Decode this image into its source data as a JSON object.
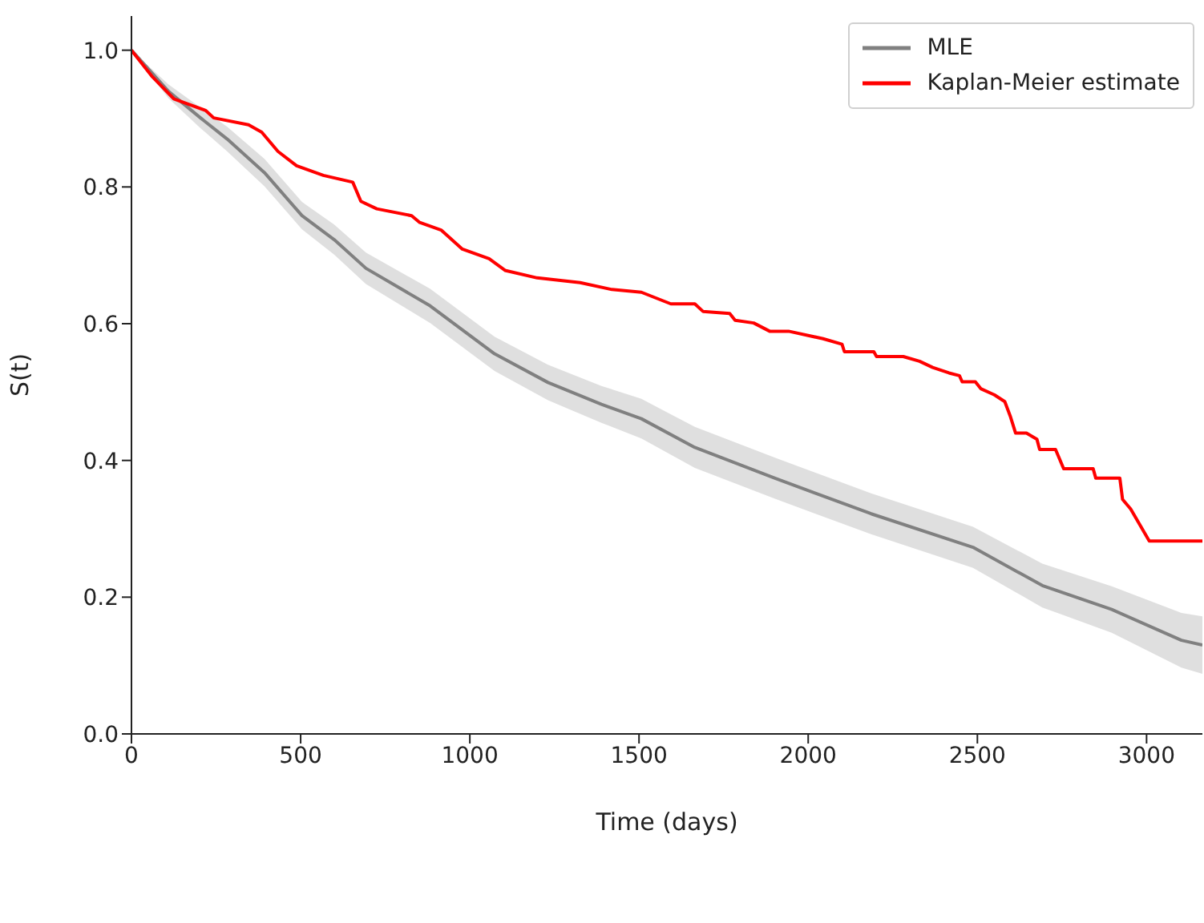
{
  "chart_data": {
    "type": "line",
    "xlabel": "Time (days)",
    "ylabel": "S(t)",
    "xlim": [
      0,
      3165
    ],
    "ylim": [
      0,
      1.05
    ],
    "xticks": [
      0,
      500,
      1000,
      1500,
      2000,
      2500,
      3000
    ],
    "yticks": [
      {
        "value": 0,
        "label": "0.0"
      },
      0.2,
      0.4,
      0.6,
      0.8,
      {
        "value": 1,
        "label": "1.0"
      }
    ],
    "grid": false,
    "legend": "top right",
    "marker": "none",
    "line_style": "solid",
    "series": [
      {
        "name": "MLE",
        "color": "#808080",
        "x": [
          0,
          109,
          204,
          283,
          393,
          504,
          599,
          693,
          883,
          1073,
          1231,
          1389,
          1507,
          1665,
          1902,
          2186,
          2487,
          2692,
          2897,
          3103,
          3165
        ],
        "values": [
          1.0,
          0.94,
          0.901,
          0.87,
          0.821,
          0.758,
          0.723,
          0.681,
          0.626,
          0.556,
          0.514,
          0.482,
          0.461,
          0.419,
          0.374,
          0.322,
          0.273,
          0.217,
          0.182,
          0.137,
          0.13
        ],
        "lower": [
          1.0,
          0.93,
          0.886,
          0.852,
          0.801,
          0.738,
          0.701,
          0.658,
          0.601,
          0.531,
          0.488,
          0.455,
          0.432,
          0.389,
          0.344,
          0.292,
          0.243,
          0.185,
          0.148,
          0.097,
          0.088
        ],
        "upper": [
          1.0,
          0.95,
          0.916,
          0.888,
          0.841,
          0.778,
          0.745,
          0.704,
          0.651,
          0.581,
          0.54,
          0.509,
          0.49,
          0.449,
          0.404,
          0.352,
          0.303,
          0.249,
          0.216,
          0.177,
          0.172
        ]
      },
      {
        "name": "Kaplan-Meier estimate",
        "color": "#ff0000",
        "x": [
          0,
          62,
          125,
          219,
          243,
          346,
          385,
          433,
          488,
          567,
          654,
          678,
          725,
          828,
          852,
          915,
          978,
          1057,
          1104,
          1199,
          1326,
          1420,
          1507,
          1594,
          1665,
          1689,
          1768,
          1784,
          1839,
          1886,
          1942,
          2044,
          2100,
          2107,
          2194,
          2202,
          2281,
          2329,
          2368,
          2416,
          2447,
          2455,
          2494,
          2510,
          2550,
          2581,
          2597,
          2613,
          2645,
          2676,
          2684,
          2731,
          2755,
          2842,
          2850,
          2921,
          2929,
          2953,
          3008,
          3165
        ],
        "values": [
          1.0,
          0.961,
          0.929,
          0.912,
          0.901,
          0.891,
          0.88,
          0.852,
          0.831,
          0.817,
          0.807,
          0.779,
          0.768,
          0.758,
          0.748,
          0.737,
          0.709,
          0.695,
          0.678,
          0.667,
          0.66,
          0.65,
          0.646,
          0.629,
          0.629,
          0.618,
          0.615,
          0.605,
          0.601,
          0.589,
          0.589,
          0.578,
          0.57,
          0.559,
          0.559,
          0.552,
          0.552,
          0.545,
          0.536,
          0.528,
          0.524,
          0.515,
          0.515,
          0.505,
          0.496,
          0.486,
          0.465,
          0.44,
          0.44,
          0.431,
          0.416,
          0.416,
          0.388,
          0.388,
          0.374,
          0.374,
          0.343,
          0.329,
          0.282,
          0.282
        ]
      }
    ]
  }
}
